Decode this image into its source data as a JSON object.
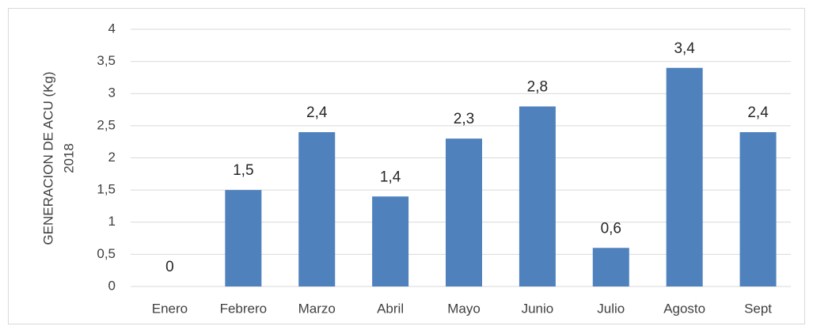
{
  "chart_data": {
    "type": "bar",
    "ylabel": [
      "GENERACION DE ACU (Kg)",
      "2018"
    ],
    "categories": [
      "Enero",
      "Febrero",
      "Marzo",
      "Abril",
      "Mayo",
      "Junio",
      "Julio",
      "Agosto",
      "Sept"
    ],
    "values": [
      0,
      1.5,
      2.4,
      1.4,
      2.3,
      2.8,
      0.6,
      3.4,
      2.4
    ],
    "value_labels": [
      "0",
      "1,5",
      "2,4",
      "1,4",
      "2,3",
      "2,8",
      "0,6",
      "3,4",
      "2,4"
    ],
    "color": "#4f81bd",
    "ylim": [
      0,
      4
    ],
    "yticks": [
      0,
      {
        "value": 0.5,
        "label": "0,5"
      },
      1,
      {
        "value": 1.5,
        "label": "1,5"
      },
      2,
      {
        "value": 2.5,
        "label": "2,5"
      },
      3,
      {
        "value": 3.5,
        "label": "3,5"
      },
      4
    ],
    "grid": true
  }
}
